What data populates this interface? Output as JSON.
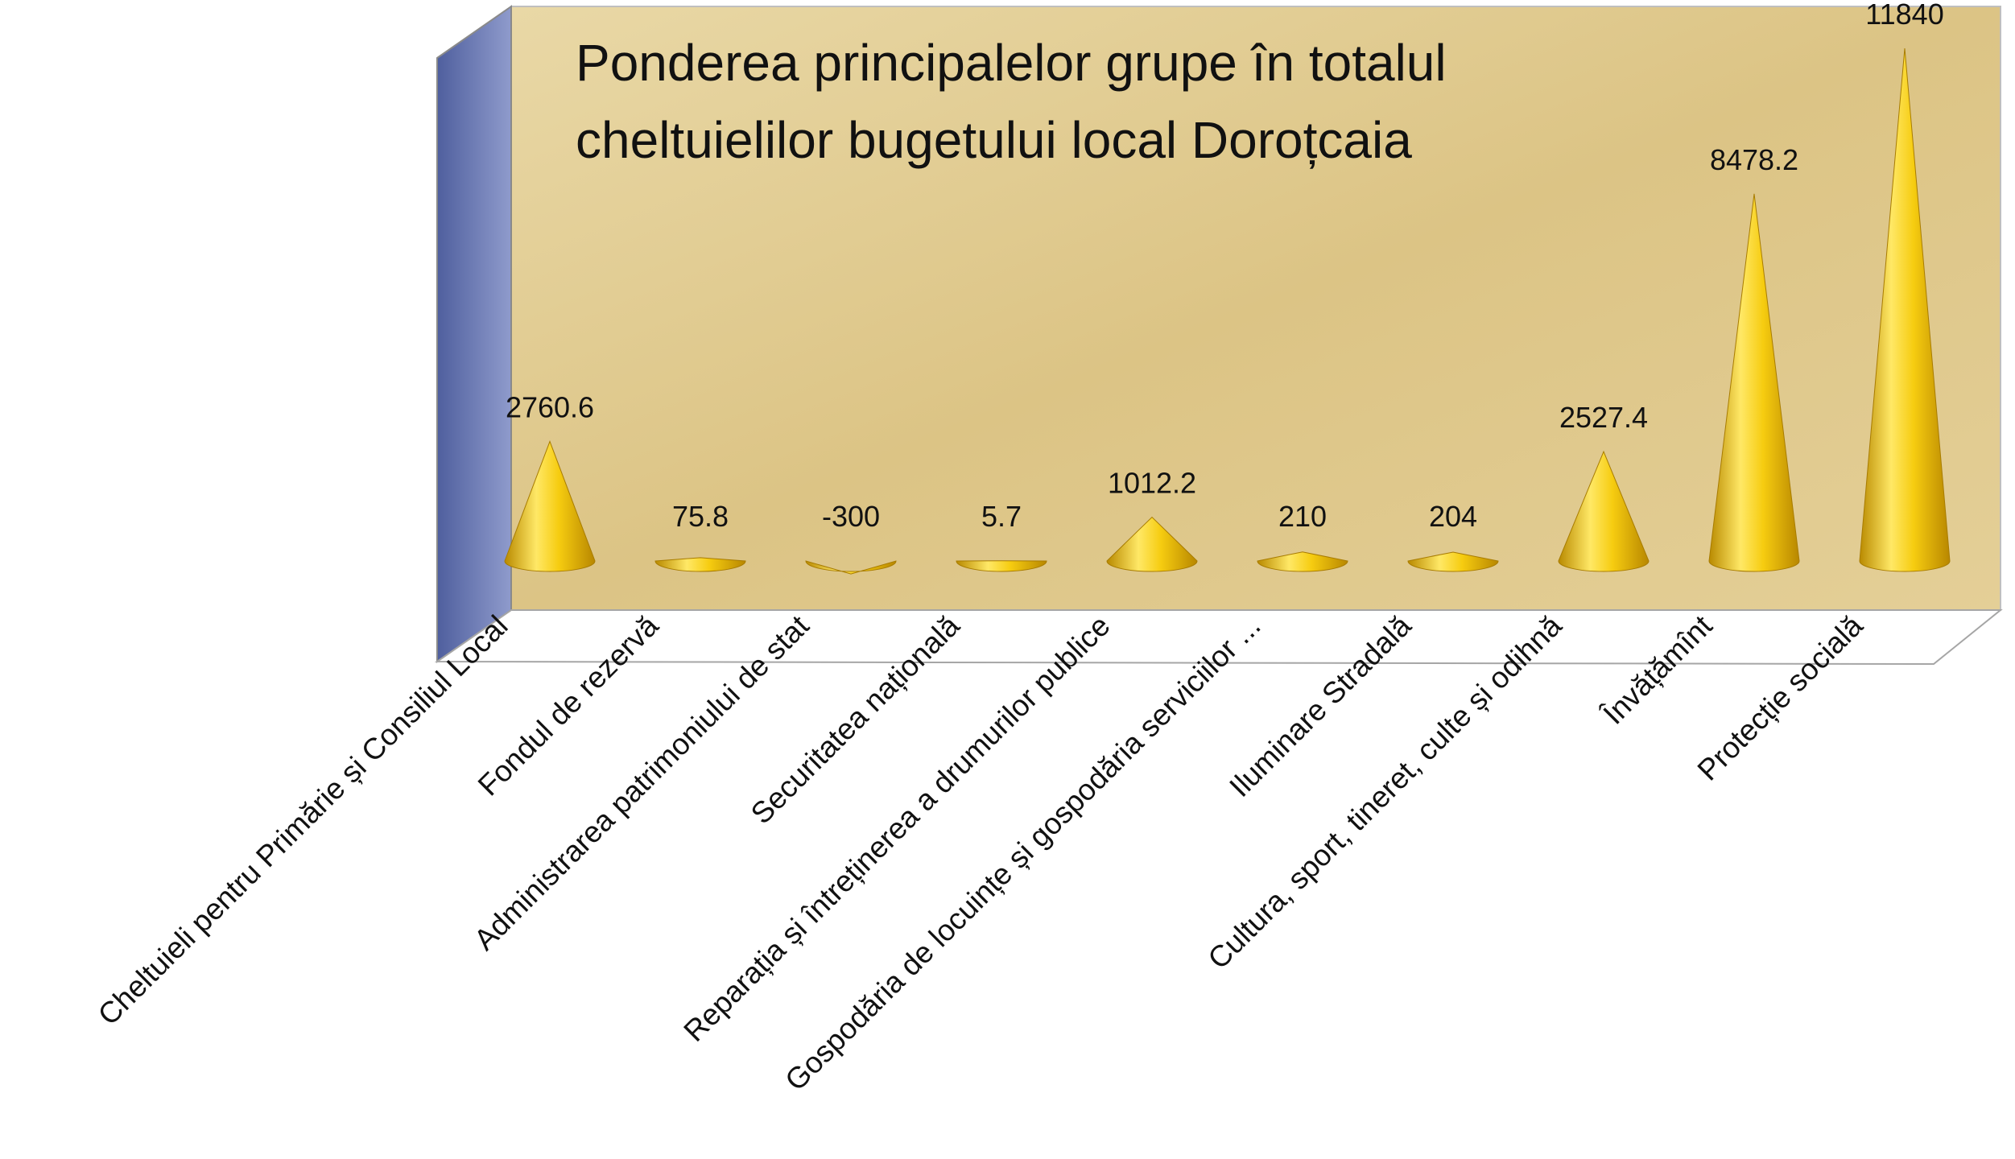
{
  "chart_data": {
    "type": "cone",
    "title": "Ponderea principalelor grupe în totalul cheltuielilor bugetului local Doroțcaia",
    "categories": [
      "Cheltuieli pentru Primărie și Consiliul Local",
      "Fondul de rezervă",
      "Administrarea patrimoniului de stat",
      "Securitatea națională",
      "Reparația și întreținerea a drumurilor publice",
      "Gospodăria de locuințe și gospodăria serviciilor ...",
      "Iluminare Stradală",
      "Cultura, sport, tineret, culte și odihnă",
      "Învățămînt",
      "Protecție socială"
    ],
    "values": [
      2760.6,
      75.8,
      -300,
      5.7,
      1012.2,
      210,
      204,
      2527.4,
      8478.2,
      11840
    ],
    "color": "#f2c200"
  }
}
